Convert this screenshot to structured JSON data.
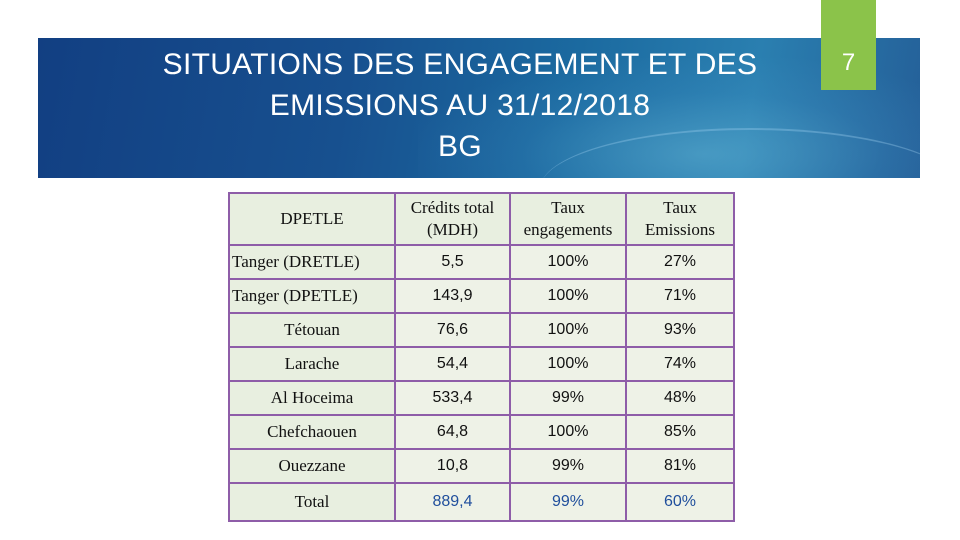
{
  "slide": {
    "title_lines": [
      "SITUATIONS DES ENGAGEMENT ET DES",
      "EMISSIONS AU 31/12/2018",
      "BG"
    ],
    "page_number": "7",
    "colors": {
      "banner": "#17508f",
      "page_tab": "#8bc34a",
      "table_border": "#8e5da8",
      "cell_fill": "#eef2e7",
      "total_values": "#1f4e9c"
    }
  },
  "table": {
    "headers": {
      "name": "DPETLE",
      "credits_line1": "Crédits total",
      "credits_line2": "(MDH)",
      "eng_line1": "Taux",
      "eng_line2": "engagements",
      "emi_line1": "Taux",
      "emi_line2": "Emissions"
    },
    "rows": [
      {
        "name": "Tanger (DRETLE)",
        "credits": "5,5",
        "engagements": "100%",
        "emissions": "27%"
      },
      {
        "name": "Tanger (DPETLE)",
        "credits": "143,9",
        "engagements": "100%",
        "emissions": "71%"
      },
      {
        "name": "Tétouan",
        "credits": "76,6",
        "engagements": "100%",
        "emissions": "93%"
      },
      {
        "name": "Larache",
        "credits": "54,4",
        "engagements": "100%",
        "emissions": "74%"
      },
      {
        "name": "Al Hoceima",
        "credits": "533,4",
        "engagements": "99%",
        "emissions": "48%"
      },
      {
        "name": "Chefchaouen",
        "credits": "64,8",
        "engagements": "100%",
        "emissions": "85%"
      },
      {
        "name": "Ouezzane",
        "credits": "10,8",
        "engagements": "99%",
        "emissions": "81%"
      }
    ],
    "total": {
      "name": "Total",
      "credits": "889,4",
      "engagements": "99%",
      "emissions": "60%"
    }
  }
}
